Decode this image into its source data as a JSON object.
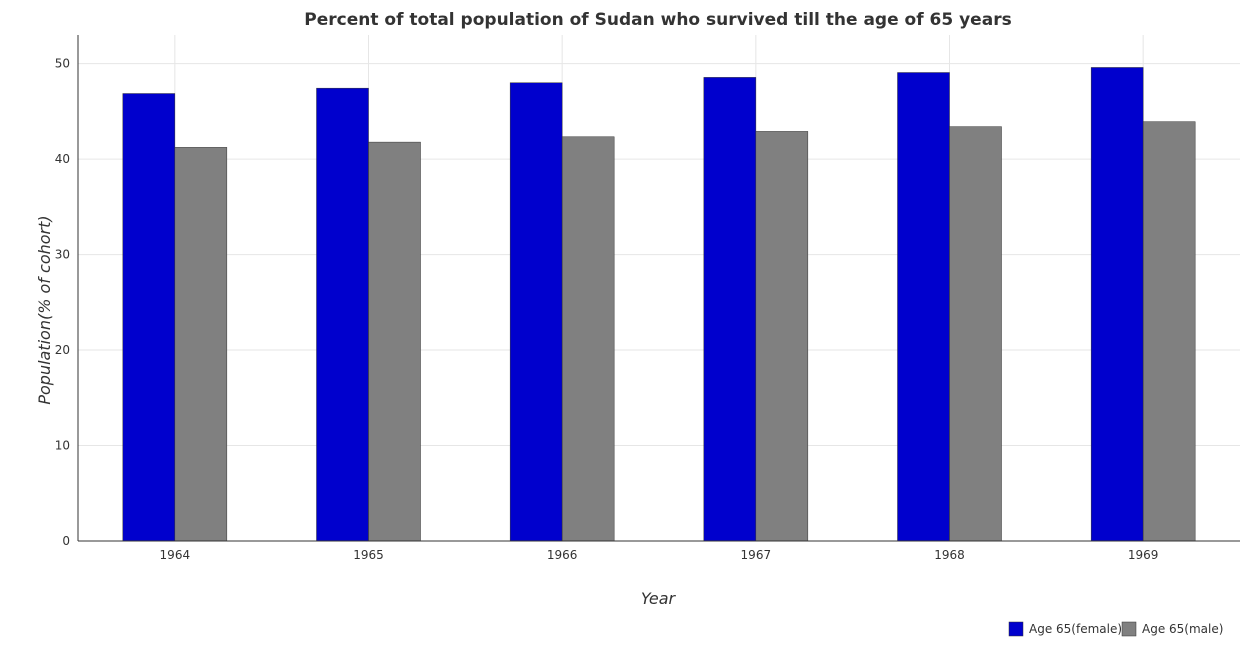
{
  "chart_data": {
    "type": "bar",
    "title": "Percent of total population of Sudan who survived till the age of 65 years",
    "xlabel": "Year",
    "ylabel": "Population(% of cohort)",
    "categories": [
      "1964",
      "1965",
      "1966",
      "1967",
      "1968",
      "1969"
    ],
    "series": [
      {
        "name": "Age 65(female)",
        "color": "#0000cd",
        "values": [
          46.87,
          47.43,
          48.0,
          48.56,
          49.07,
          49.6
        ]
      },
      {
        "name": "Age 65(male)",
        "color": "#808080",
        "values": [
          41.23,
          41.78,
          42.34,
          42.9,
          43.4,
          43.92
        ]
      }
    ],
    "yticks": [
      0,
      10,
      20,
      30,
      40,
      50
    ],
    "ylim": [
      0,
      53
    ],
    "grid": true,
    "legend_position": "bottom-right"
  }
}
